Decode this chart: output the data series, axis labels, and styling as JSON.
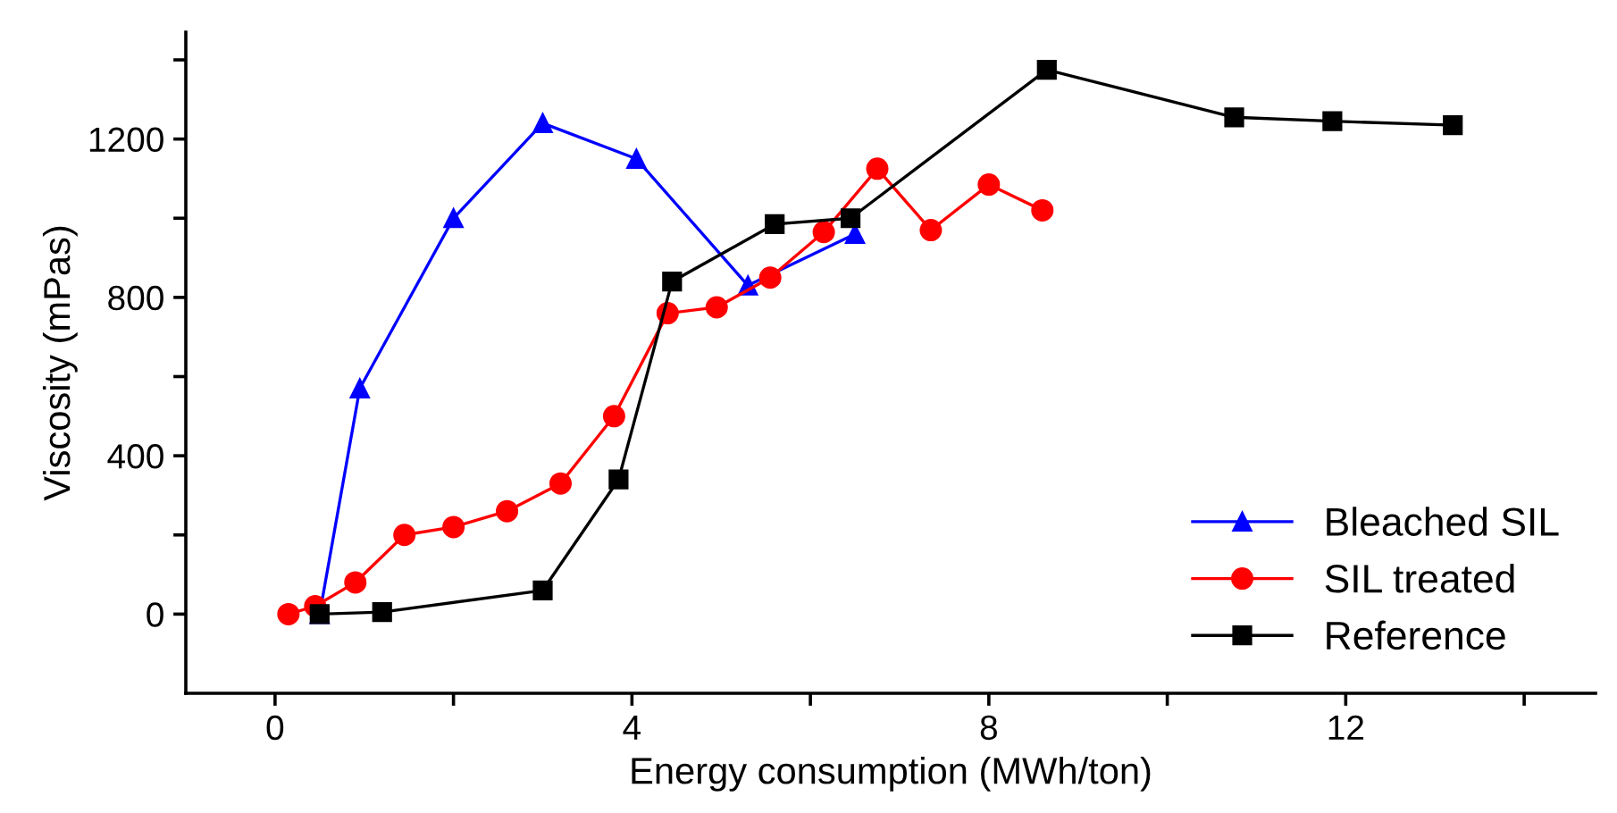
{
  "chart_data": {
    "type": "line",
    "xlabel": "Energy consumption (MWh/ton)",
    "ylabel": "Viscosity (mPas)",
    "xlim": [
      -1,
      14.8
    ],
    "ylim": [
      -200,
      1470
    ],
    "xticks": [
      0,
      {
        "value": 2,
        "label": null
      },
      4,
      {
        "value": 6,
        "label": null
      },
      8,
      {
        "value": 10,
        "label": null
      },
      12,
      {
        "value": 14,
        "label": null
      }
    ],
    "yticks": [
      0,
      {
        "value": 200,
        "label": null
      },
      400,
      {
        "value": 600,
        "label": null
      },
      800,
      {
        "value": 1000,
        "label": null
      },
      1200,
      {
        "value": 1400,
        "label": null
      }
    ],
    "grid": false,
    "legend": "bottom right",
    "series": [
      {
        "name": "Bleached SIL",
        "color": "#0000ff",
        "marker": "triangle",
        "x": [
          0.5,
          0.95,
          2.0,
          3.0,
          4.05,
          5.3,
          6.5
        ],
        "values": [
          0,
          570,
          1000,
          1240,
          1150,
          830,
          960
        ]
      },
      {
        "name": "SIL treated",
        "color": "#ff0000",
        "marker": "circle",
        "x": [
          0.15,
          0.45,
          0.9,
          1.45,
          2.0,
          2.6,
          3.2,
          3.8,
          4.4,
          4.95,
          5.55,
          6.15,
          6.75,
          7.35,
          8.0,
          8.6
        ],
        "values": [
          0,
          20,
          80,
          200,
          220,
          260,
          330,
          500,
          760,
          775,
          850,
          965,
          1125,
          970,
          1085,
          1020
        ]
      },
      {
        "name": "Reference",
        "color": "#000000",
        "marker": "square",
        "x": [
          0.5,
          1.2,
          3.0,
          3.85,
          4.45,
          5.6,
          6.45,
          8.65,
          10.75,
          11.85,
          13.2
        ],
        "values": [
          0,
          5,
          60,
          340,
          840,
          985,
          1000,
          1375,
          1255,
          1245,
          1235
        ]
      }
    ]
  }
}
